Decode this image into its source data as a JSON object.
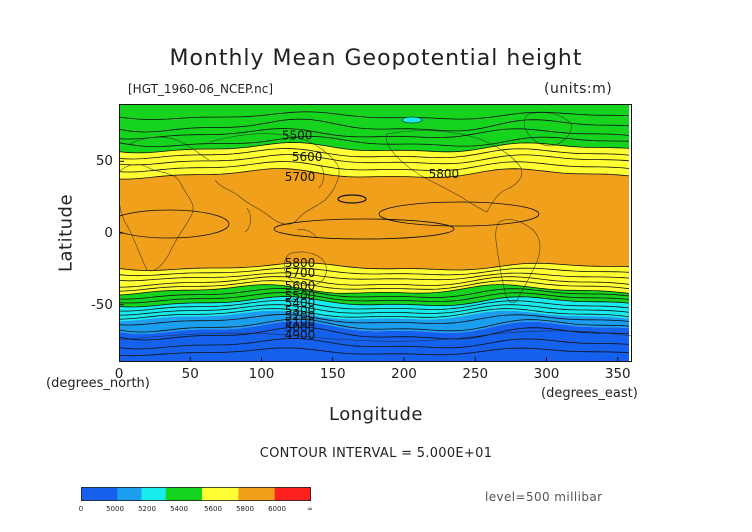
{
  "title": "Monthly Mean Geopotential height",
  "file_label": "[HGT_1960-06_NCEP.nc]",
  "units_label": "(units:m)",
  "x_axis": {
    "label": "Longitude",
    "unit_label": "(degrees_east)",
    "range": [
      0,
      360
    ],
    "ticks": [
      "0",
      "50",
      "100",
      "150",
      "200",
      "250",
      "300",
      "350"
    ]
  },
  "y_axis": {
    "label": "Latitude",
    "unit_label": "(degrees_north)",
    "range": [
      -90,
      90
    ],
    "ticks": [
      "50",
      "0",
      "-50"
    ]
  },
  "contour_interval": "CONTOUR INTERVAL = 5.000E+01",
  "level_label": "level=500 millibar",
  "contour_labels": [
    {
      "text": "5500",
      "lon": 125,
      "lat": 68
    },
    {
      "text": "5600",
      "lon": 132,
      "lat": 53
    },
    {
      "text": "5700",
      "lon": 127,
      "lat": 39
    },
    {
      "text": "5800",
      "lon": 228,
      "lat": 41
    },
    {
      "text": "5800",
      "lon": 127,
      "lat": -21
    },
    {
      "text": "5700",
      "lon": 127,
      "lat": -28
    },
    {
      "text": "5600",
      "lon": 127,
      "lat": -37
    },
    {
      "text": "5500",
      "lon": 127,
      "lat": -44
    },
    {
      "text": "5400",
      "lon": 127,
      "lat": -49
    },
    {
      "text": "5300",
      "lon": 127,
      "lat": -54
    },
    {
      "text": "5200",
      "lon": 127,
      "lat": -58
    },
    {
      "text": "5100",
      "lon": 127,
      "lat": -62
    },
    {
      "text": "5000",
      "lon": 127,
      "lat": -66
    },
    {
      "text": "4900",
      "lon": 127,
      "lat": -71
    }
  ],
  "colors": {
    "blue": "#1560ec",
    "lightblue": "#1c9eee",
    "cyan": "#19ecec",
    "green": "#16d41e",
    "yellow": "#ffff33",
    "orange": "#f0a01a",
    "red": "#ff2020"
  },
  "colorbar": {
    "labels": [
      "0",
      "5000",
      "5200",
      "5400",
      "5600",
      "5800",
      "6000",
      "∞"
    ],
    "segments": [
      "#1560ec",
      "#1560ec",
      "#1560ec",
      "#1c9eee",
      "#1c9eee",
      "#19ecec",
      "#19ecec",
      "#16d41e",
      "#16d41e",
      "#16d41e",
      "#ffff33",
      "#ffff33",
      "#ffff33",
      "#f0a01a",
      "#f0a01a",
      "#f0a01a",
      "#ff2020",
      "#ff2020",
      "#ff2020"
    ]
  }
}
